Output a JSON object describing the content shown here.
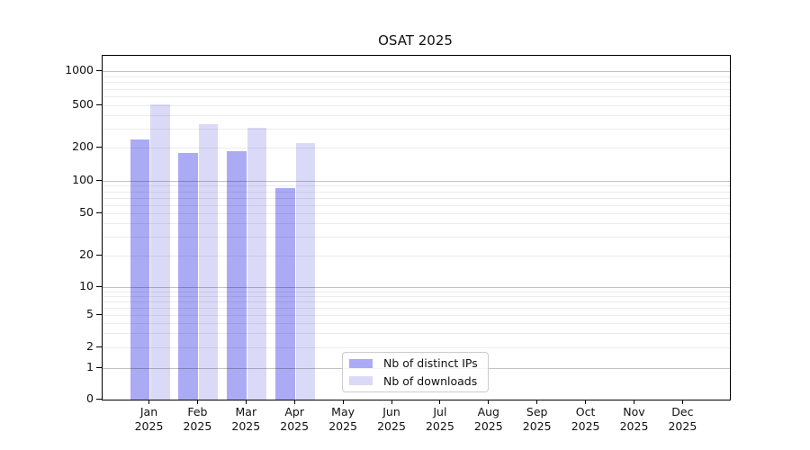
{
  "chart_data": {
    "type": "bar",
    "title": "OSAT 2025",
    "months": [
      "Jan",
      "Feb",
      "Mar",
      "Apr",
      "May",
      "Jun",
      "Jul",
      "Aug",
      "Sep",
      "Oct",
      "Nov",
      "Dec"
    ],
    "year": "2025",
    "series": [
      {
        "name": "Nb of distinct IPs",
        "color": "#aaaaf5",
        "values": [
          240,
          180,
          185,
          86,
          0,
          0,
          0,
          0,
          0,
          0,
          0,
          0
        ]
      },
      {
        "name": "Nb of downloads",
        "color": "#dadaf8",
        "values": [
          505,
          330,
          310,
          220,
          0,
          0,
          0,
          0,
          0,
          0,
          0,
          0
        ]
      }
    ],
    "y_axis": {
      "scale": "log",
      "tick_labels": [
        0,
        1,
        2,
        5,
        10,
        20,
        50,
        100,
        200,
        500,
        1000
      ]
    },
    "grid": {
      "minor_values": [
        2,
        3,
        4,
        5,
        6,
        7,
        8,
        9,
        20,
        30,
        40,
        50,
        60,
        70,
        80,
        90,
        200,
        300,
        400,
        500,
        600,
        700,
        800,
        900
      ],
      "major_values": [
        1,
        10,
        100,
        1000
      ]
    },
    "legend_position": "lower center"
  },
  "colors": {
    "background": "#ffffff",
    "axis": "#000000",
    "text": "#111111",
    "grid_minor": "rgba(0,0,0,0.075)",
    "grid_major": "rgba(0,0,0,0.24)"
  }
}
